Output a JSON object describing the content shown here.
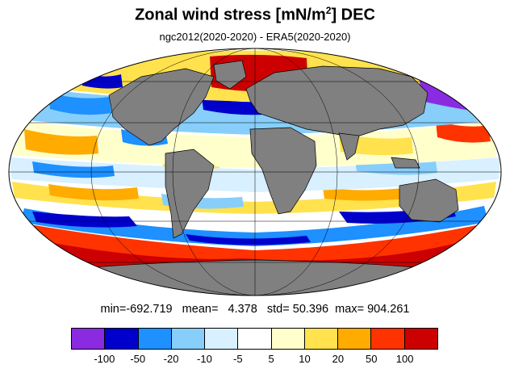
{
  "title": {
    "main": "Zonal wind stress [mN/m",
    "sup": "2",
    "end": "] DEC"
  },
  "subtitle": "ngc2012(2020-2020) - ERA5(2020-2020)",
  "stats": {
    "min_label": "min=",
    "min": "-692.719",
    "mean_label": "mean=",
    "mean": "4.378",
    "std_label": "std=",
    "std": "50.396",
    "max_label": "max=",
    "max": "904.261"
  },
  "map": {
    "projection": "Mollweide",
    "land_color": "#808080",
    "ocean_field": "zonal wind stress difference"
  },
  "colorbar": {
    "colors": [
      "#8a2be2",
      "#0000cd",
      "#1e90ff",
      "#87cefa",
      "#d8f0ff",
      "#ffffff",
      "#ffffcc",
      "#ffe24d",
      "#ffab00",
      "#ff3300",
      "#cc0000"
    ],
    "tick_labels": [
      "-100",
      "-50",
      "-20",
      "-10",
      "-5",
      "5",
      "10",
      "20",
      "50",
      "100"
    ]
  }
}
